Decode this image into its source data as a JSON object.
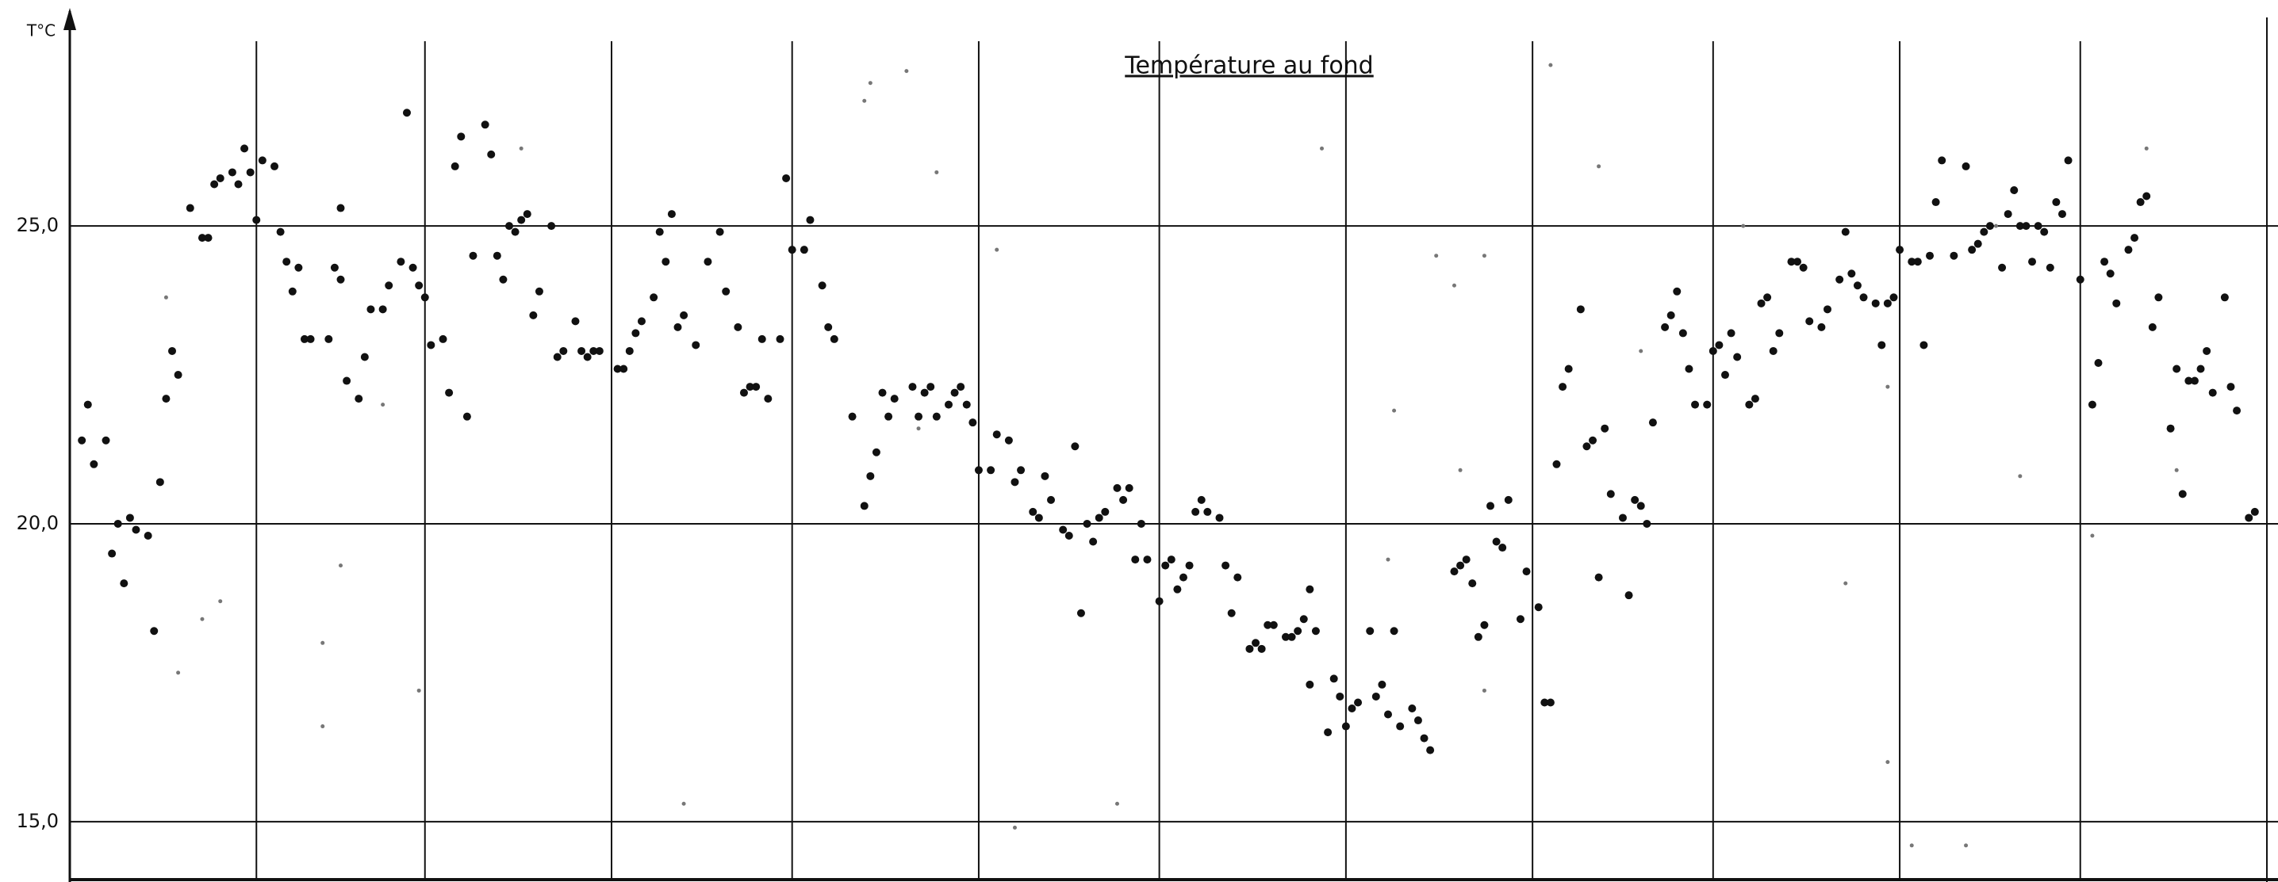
{
  "chart_data": {
    "type": "scatter",
    "title": "Température au fond",
    "ylabel": "T°C",
    "xlim": [
      0,
      365
    ],
    "xticks": [
      31,
      59,
      90,
      120,
      151,
      181,
      212,
      243,
      273,
      304,
      334
    ],
    "ylim": [
      14,
      28.5
    ],
    "yticks": [
      {
        "value": 25,
        "label": "25,0"
      },
      {
        "value": 20,
        "label": "20,0"
      },
      {
        "value": 15,
        "label": "15,0"
      }
    ],
    "grid": true,
    "series": [
      {
        "color": "#111111",
        "x": [
          2,
          3,
          4,
          6,
          7,
          8,
          9,
          10,
          11,
          13,
          14,
          15,
          16,
          17,
          18,
          20,
          22,
          23,
          24,
          25,
          27,
          28,
          29,
          30,
          31,
          32,
          34,
          35,
          36,
          37,
          38,
          39,
          40,
          43,
          44,
          45,
          45,
          46,
          48,
          49,
          50,
          52,
          53,
          55,
          56,
          57,
          58,
          59,
          60,
          62,
          63,
          64,
          65,
          66,
          67,
          69,
          70,
          71,
          72,
          73,
          74,
          75,
          76,
          77,
          78,
          80,
          81,
          82,
          84,
          85,
          86,
          87,
          88,
          91,
          92,
          93,
          94,
          95,
          97,
          98,
          99,
          100,
          101,
          102,
          104,
          106,
          108,
          109,
          111,
          112,
          113,
          114,
          115,
          116,
          118,
          119,
          120,
          122,
          123,
          125,
          126,
          127,
          130,
          132,
          133,
          134,
          135,
          136,
          137,
          140,
          141,
          142,
          143,
          144,
          146,
          147,
          148,
          149,
          150,
          151,
          153,
          154,
          156,
          157,
          158,
          160,
          161,
          162,
          163,
          165,
          166,
          167,
          168,
          169,
          170,
          171,
          172,
          174,
          175,
          176,
          177,
          178,
          179,
          181,
          182,
          183,
          184,
          185,
          186,
          187,
          188,
          189,
          191,
          192,
          193,
          194,
          196,
          197,
          198,
          199,
          200,
          202,
          203,
          204,
          205,
          206,
          207,
          206,
          209,
          210,
          211,
          212,
          213,
          214,
          216,
          217,
          218,
          219,
          220,
          221,
          223,
          224,
          225,
          226,
          230,
          231,
          232,
          233,
          234,
          235,
          236,
          237,
          238,
          239,
          241,
          242,
          244,
          245,
          246,
          247,
          248,
          249,
          251,
          252,
          253,
          255,
          254,
          256,
          258,
          259,
          260,
          261,
          262,
          263,
          265,
          266,
          267,
          268,
          269,
          270,
          272,
          273,
          274,
          275,
          276,
          277,
          279,
          280,
          281,
          282,
          283,
          284,
          286,
          287,
          288,
          289,
          291,
          292,
          294,
          295,
          296,
          297,
          298,
          300,
          301,
          302,
          303,
          304,
          306,
          307,
          308,
          309,
          310,
          311,
          313,
          315,
          316,
          317,
          318,
          319,
          321,
          322,
          323,
          324,
          325,
          326,
          327,
          328,
          329,
          330,
          331,
          332,
          334,
          336,
          337,
          338,
          339,
          340,
          342,
          343,
          344,
          345,
          346,
          347,
          349,
          350,
          351,
          352,
          353,
          354,
          355,
          356,
          358,
          359,
          360,
          362,
          363
        ],
        "values": [
          21.4,
          22.0,
          21.0,
          21.4,
          19.5,
          20.0,
          19.0,
          20.1,
          19.9,
          19.8,
          18.2,
          20.7,
          22.1,
          22.9,
          22.5,
          25.3,
          24.8,
          24.8,
          25.7,
          25.8,
          25.9,
          25.7,
          26.3,
          25.9,
          25.1,
          26.1,
          26.0,
          24.9,
          24.4,
          23.9,
          24.3,
          23.1,
          23.1,
          23.1,
          24.3,
          24.1,
          25.3,
          22.4,
          22.1,
          22.8,
          23.6,
          23.6,
          24.0,
          24.4,
          26.9,
          24.3,
          24.0,
          23.8,
          23.0,
          23.1,
          22.2,
          26.0,
          26.5,
          21.8,
          24.5,
          26.7,
          26.2,
          24.5,
          24.1,
          25.0,
          24.9,
          25.1,
          25.2,
          23.5,
          23.9,
          25.0,
          22.8,
          22.9,
          23.4,
          22.9,
          22.8,
          22.9,
          22.9,
          22.6,
          22.6,
          22.9,
          23.2,
          23.4,
          23.8,
          24.9,
          24.4,
          25.2,
          23.3,
          23.5,
          23.0,
          24.4,
          24.9,
          23.9,
          23.3,
          22.2,
          22.3,
          22.3,
          23.1,
          22.1,
          23.1,
          25.8,
          24.6,
          24.6,
          25.1,
          24.0,
          23.3,
          23.1,
          21.8,
          20.3,
          20.8,
          21.2,
          22.2,
          21.8,
          22.1,
          22.3,
          21.8,
          22.2,
          22.3,
          21.8,
          22.0,
          22.2,
          22.3,
          22.0,
          21.7,
          20.9,
          20.9,
          21.5,
          21.4,
          20.7,
          20.9,
          20.2,
          20.1,
          20.8,
          20.4,
          19.9,
          19.8,
          21.3,
          18.5,
          20.0,
          19.7,
          20.1,
          20.2,
          20.6,
          20.4,
          20.6,
          19.4,
          20.0,
          19.4,
          18.7,
          19.3,
          19.4,
          18.9,
          19.1,
          19.3,
          20.2,
          20.4,
          20.2,
          20.1,
          19.3,
          18.5,
          19.1,
          17.9,
          18.0,
          17.9,
          18.3,
          18.3,
          18.1,
          18.1,
          18.2,
          18.4,
          18.9,
          18.2,
          17.3,
          16.5,
          17.4,
          17.1,
          16.6,
          16.9,
          17.0,
          18.2,
          17.1,
          17.3,
          16.8,
          18.2,
          16.6,
          16.9,
          16.7,
          16.4,
          16.2,
          19.2,
          19.3,
          19.4,
          19.0,
          18.1,
          18.3,
          20.3,
          19.7,
          19.6,
          20.4,
          18.4,
          19.2,
          18.6,
          17.0,
          17.0,
          21.0,
          22.3,
          22.6,
          23.6,
          21.3,
          21.4,
          21.6,
          19.1,
          20.5,
          20.1,
          18.8,
          20.4,
          20.3,
          20.0,
          21.7,
          23.3,
          23.5,
          23.9,
          23.2,
          22.6,
          22.0,
          22.0,
          22.9,
          23.0,
          22.5,
          23.2,
          22.8,
          22.0,
          22.1,
          23.7,
          23.8,
          22.9,
          23.2,
          24.4,
          24.4,
          24.3,
          23.4,
          23.3,
          23.6,
          24.1,
          24.9,
          24.2,
          24.0,
          23.8,
          23.7,
          23.0,
          23.7,
          23.8,
          24.6,
          24.4,
          24.4,
          23.0,
          24.5,
          25.4,
          26.1,
          24.5,
          26.0,
          24.6,
          24.7,
          24.9,
          25.0,
          24.3,
          25.2,
          25.6,
          25.0,
          25.0,
          24.4,
          25.0,
          24.9,
          24.3,
          25.4,
          25.2,
          26.1,
          24.1,
          22.0,
          22.7,
          24.4,
          24.2,
          23.7,
          24.6,
          24.8,
          25.4,
          25.5,
          23.3,
          23.8,
          21.6,
          22.6,
          20.5,
          22.4,
          22.4,
          22.6,
          22.9,
          22.2,
          23.8,
          22.3,
          21.9,
          20.1,
          20.2
        ]
      },
      {
        "color": "#777777",
        "x": [
          16,
          18,
          22,
          25,
          42,
          42,
          45,
          52,
          58,
          75,
          102,
          132,
          133,
          139,
          141,
          144,
          154,
          157,
          174,
          208,
          219,
          220,
          227,
          230,
          231,
          235,
          235,
          246,
          254,
          261,
          278,
          295,
          302,
          302,
          306,
          315,
          320,
          324,
          336,
          345,
          350
        ],
        "values": [
          23.8,
          17.5,
          18.4,
          18.7,
          18.0,
          16.6,
          19.3,
          22.0,
          17.2,
          26.3,
          15.3,
          27.1,
          27.4,
          27.6,
          21.6,
          25.9,
          24.6,
          14.9,
          15.3,
          26.3,
          19.4,
          21.9,
          24.5,
          24.0,
          20.9,
          24.5,
          17.2,
          27.7,
          26.0,
          22.9,
          25.0,
          19.0,
          22.3,
          16.0,
          14.6,
          14.6,
          25.0,
          20.8,
          19.8,
          26.3,
          20.9
        ]
      }
    ]
  }
}
